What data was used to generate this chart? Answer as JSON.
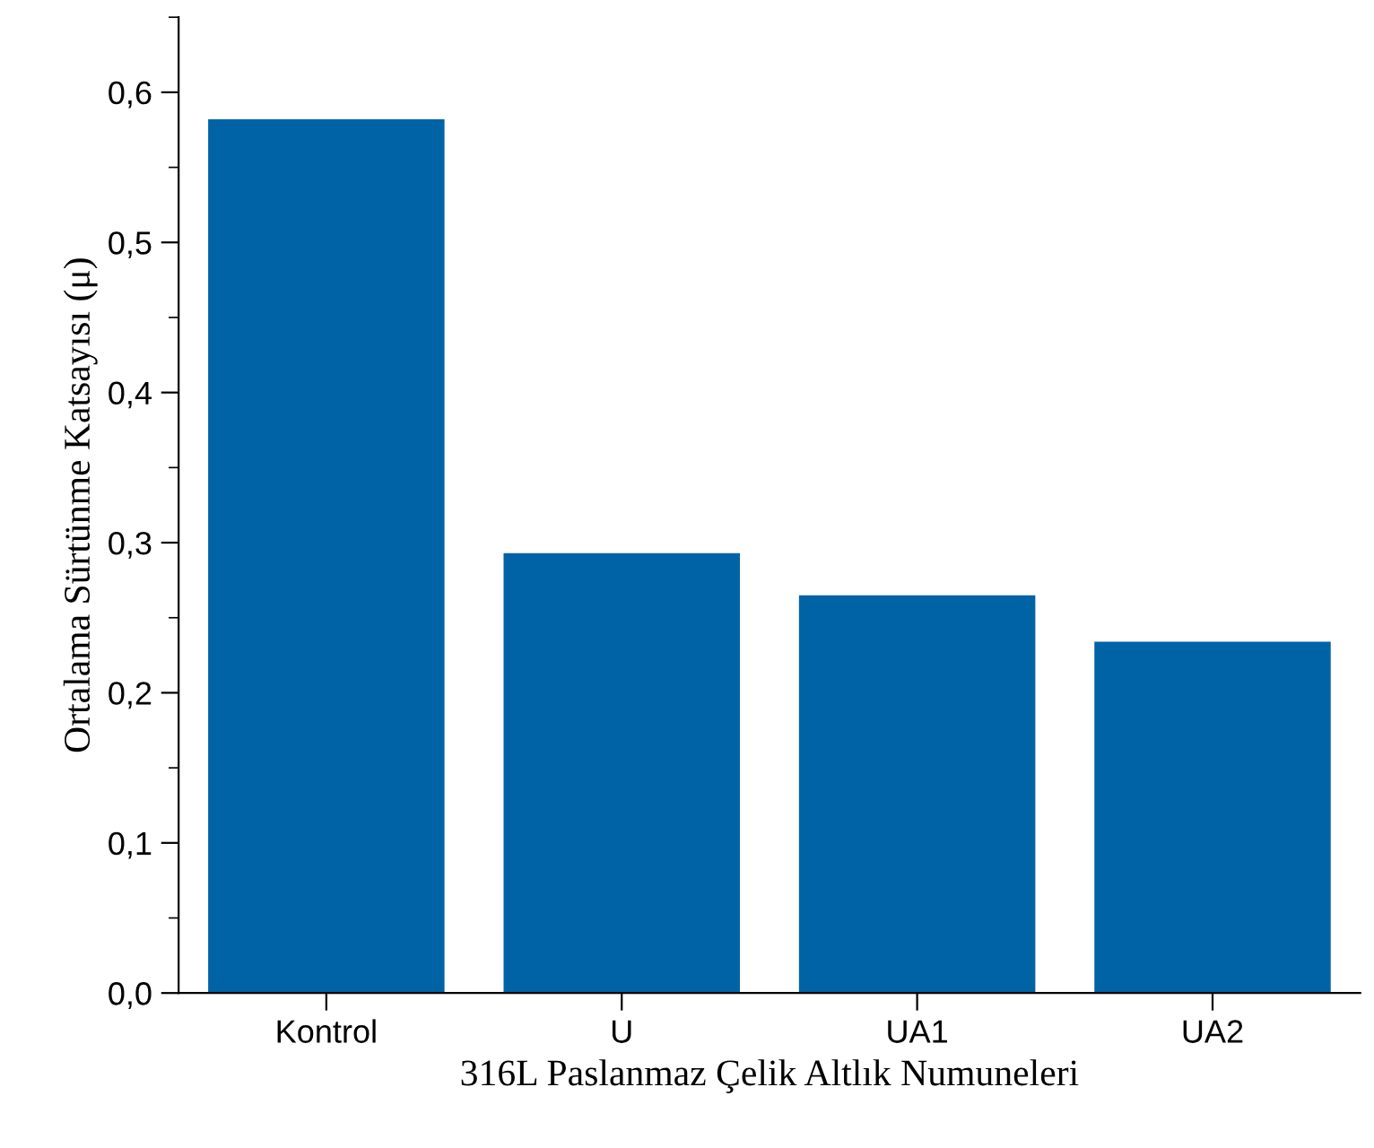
{
  "chart_data": {
    "type": "bar",
    "xlabel": "316L Paslanmaz Çelik Altlık Numuneleri",
    "ylabel": "Ortalama Sürtünme Katsayısı (μ)",
    "categories": [
      "Kontrol",
      "U",
      "UA1",
      "UA2"
    ],
    "values": [
      0.582,
      0.293,
      0.265,
      0.234
    ],
    "color": "#0063a6",
    "ylim": [
      0,
      0.65
    ],
    "yticks": [
      {
        "value": 0,
        "label": "0,0"
      },
      {
        "value": 0.1,
        "label": "0,1"
      },
      {
        "value": 0.2,
        "label": "0,2"
      },
      {
        "value": 0.3,
        "label": "0,3"
      },
      {
        "value": 0.4,
        "label": "0,4"
      },
      {
        "value": 0.5,
        "label": "0,5"
      },
      {
        "value": 0.6,
        "label": "0,6"
      }
    ],
    "grid": false
  }
}
